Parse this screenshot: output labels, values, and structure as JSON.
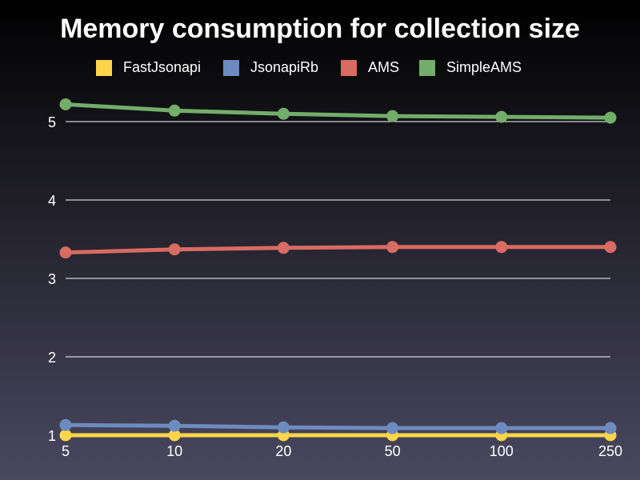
{
  "chart_data": {
    "type": "line",
    "title": "Memory consumption for collection size",
    "xlabel": "",
    "ylabel": "",
    "categories": [
      "5",
      "10",
      "20",
      "50",
      "100",
      "250"
    ],
    "ylim": [
      1,
      5
    ],
    "yticks": [
      1,
      2,
      3,
      4,
      5
    ],
    "grid": true,
    "legend_position": "top",
    "series": [
      {
        "name": "FastJsonapi",
        "color": "#fdd54a",
        "values": [
          1.0,
          1.0,
          1.0,
          1.0,
          1.0,
          1.0
        ]
      },
      {
        "name": "JsonapiRb",
        "color": "#6e8bbf",
        "values": [
          1.13,
          1.12,
          1.1,
          1.09,
          1.09,
          1.09
        ]
      },
      {
        "name": "AMS",
        "color": "#d96b62",
        "values": [
          3.33,
          3.37,
          3.39,
          3.4,
          3.4,
          3.4
        ]
      },
      {
        "name": "SimpleAMS",
        "color": "#73ad6a",
        "values": [
          5.22,
          5.14,
          5.1,
          5.07,
          5.06,
          5.05
        ]
      }
    ]
  }
}
